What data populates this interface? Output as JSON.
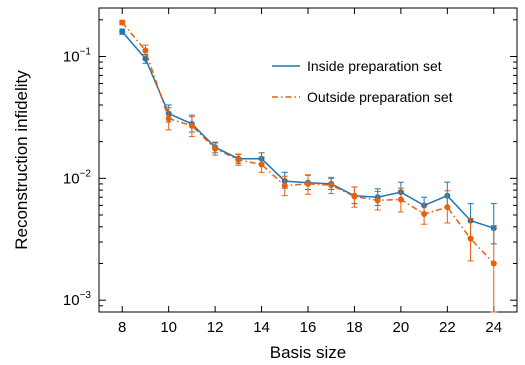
{
  "chart_data": {
    "type": "line",
    "xlabel": "Basis size",
    "ylabel": "Reconstruction infidelity",
    "xlim": [
      7,
      25
    ],
    "ylim": [
      0.0008,
      0.25
    ],
    "yscale": "log",
    "xticks": [
      8,
      10,
      12,
      14,
      16,
      18,
      20,
      22,
      24
    ],
    "yticks": [
      {
        "value": 0.001,
        "base": "10",
        "exp": "−3"
      },
      {
        "value": 0.01,
        "base": "10",
        "exp": "−2"
      },
      {
        "value": 0.1,
        "base": "10",
        "exp": "−1"
      }
    ],
    "grid": false,
    "legend_position": "top-right",
    "x": [
      8,
      9,
      10,
      11,
      12,
      13,
      14,
      15,
      16,
      17,
      18,
      19,
      20,
      21,
      22,
      23,
      24
    ],
    "series": [
      {
        "name": "Inside preparation set",
        "color": "#1f77b4",
        "style": "solid",
        "values": [
          0.16,
          0.096,
          0.034,
          0.028,
          0.018,
          0.0145,
          0.0145,
          0.0095,
          0.0092,
          0.009,
          0.0072,
          0.007,
          0.0077,
          0.006,
          0.0072,
          0.0045,
          0.0039
        ],
        "err_low": [
          0.152,
          0.088,
          0.029,
          0.024,
          0.0162,
          0.0133,
          0.0131,
          0.0083,
          0.0081,
          0.0081,
          0.0062,
          0.006,
          0.0067,
          0.0052,
          0.0058,
          0.0033,
          0.0029
        ],
        "err_high": [
          0.168,
          0.104,
          0.04,
          0.033,
          0.0198,
          0.0158,
          0.0162,
          0.0112,
          0.0106,
          0.01,
          0.0085,
          0.0082,
          0.0093,
          0.007,
          0.0093,
          0.0062,
          0.0062
        ]
      },
      {
        "name": "Outside preparation set",
        "color": "#e8600a",
        "style": "dashdot",
        "values": [
          0.19,
          0.112,
          0.031,
          0.027,
          0.0175,
          0.0142,
          0.013,
          0.0087,
          0.009,
          0.0088,
          0.0071,
          0.0066,
          0.0067,
          0.0051,
          0.0058,
          0.0032,
          0.002
        ],
        "err_low": [
          0.182,
          0.101,
          0.025,
          0.022,
          0.0155,
          0.0128,
          0.0112,
          0.0072,
          0.0074,
          0.0075,
          0.0058,
          0.0055,
          0.0053,
          0.0042,
          0.0043,
          0.0021,
          0.0008
        ],
        "err_high": [
          0.198,
          0.124,
          0.038,
          0.032,
          0.0195,
          0.0157,
          0.015,
          0.0104,
          0.0107,
          0.0102,
          0.0085,
          0.0078,
          0.0083,
          0.0062,
          0.0079,
          0.0047,
          0.0041
        ]
      }
    ]
  }
}
